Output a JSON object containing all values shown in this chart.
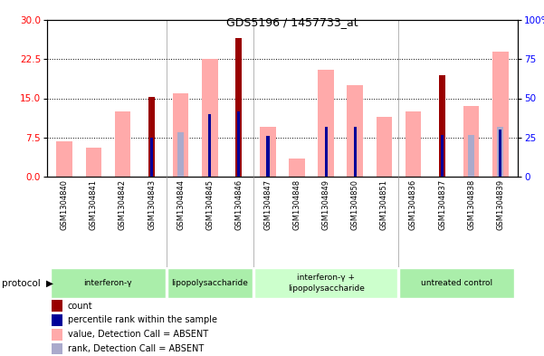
{
  "title": "GDS5196 / 1457733_at",
  "samples": [
    "GSM1304840",
    "GSM1304841",
    "GSM1304842",
    "GSM1304843",
    "GSM1304844",
    "GSM1304845",
    "GSM1304846",
    "GSM1304847",
    "GSM1304848",
    "GSM1304849",
    "GSM1304850",
    "GSM1304851",
    "GSM1304836",
    "GSM1304837",
    "GSM1304838",
    "GSM1304839"
  ],
  "count_values": [
    0,
    0,
    0,
    15.2,
    0,
    0,
    26.5,
    0,
    0,
    0,
    0,
    0,
    0,
    19.5,
    0,
    0
  ],
  "rank_values": [
    0,
    0,
    0,
    7.5,
    0,
    12.0,
    12.5,
    7.8,
    0,
    9.5,
    9.5,
    0,
    0,
    8.0,
    0,
    9.0
  ],
  "value_absent": [
    6.8,
    5.5,
    12.5,
    0,
    16.0,
    22.5,
    0,
    9.5,
    3.5,
    20.5,
    17.5,
    11.5,
    12.5,
    0,
    13.5,
    24.0
  ],
  "rank_absent": [
    0,
    0,
    0,
    0,
    8.5,
    0,
    12.0,
    0,
    0,
    0,
    0,
    0,
    0,
    0,
    8.0,
    9.5
  ],
  "protocols": [
    {
      "label": "interferon-γ",
      "start": 0,
      "end": 4,
      "color": "#aaeeaa"
    },
    {
      "label": "lipopolysaccharide",
      "start": 4,
      "end": 7,
      "color": "#aaeeaa"
    },
    {
      "label": "interferon-γ +\nlipopolysaccharide",
      "start": 7,
      "end": 12,
      "color": "#ccffcc"
    },
    {
      "label": "untreated control",
      "start": 12,
      "end": 16,
      "color": "#aaeeaa"
    }
  ],
  "ylim_left": [
    0,
    30
  ],
  "ylim_right": [
    0,
    100
  ],
  "yticks_left": [
    0,
    7.5,
    15,
    22.5,
    30
  ],
  "yticks_right": [
    0,
    25,
    50,
    75,
    100
  ],
  "color_count": "#990000",
  "color_rank": "#000099",
  "color_value_absent": "#ffaaaa",
  "color_rank_absent": "#aaaacc",
  "bg_plot": "#ffffff",
  "bg_labels": "#d8d8d8",
  "bg_fig": "#ffffff"
}
